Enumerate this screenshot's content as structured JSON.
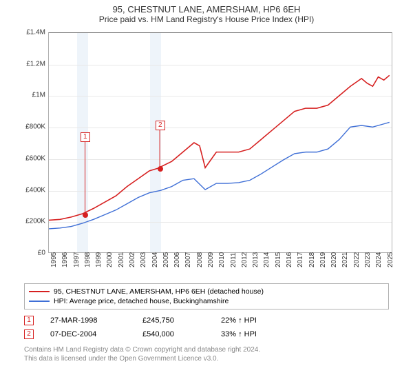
{
  "title": "95, CHESTNUT LANE, AMERSHAM, HP6 6EH",
  "subtitle": "Price paid vs. HM Land Registry's House Price Index (HPI)",
  "chart": {
    "type": "line",
    "background_color": "#ffffff",
    "grid_color": "#e8e8e8",
    "plot_border_color": "#b0b0b0",
    "x": {
      "min": 1995,
      "max": 2025.7,
      "ticks": [
        1995,
        1996,
        1997,
        1998,
        1999,
        2000,
        2001,
        2002,
        2003,
        2004,
        2005,
        2006,
        2007,
        2008,
        2009,
        2010,
        2011,
        2012,
        2013,
        2014,
        2015,
        2016,
        2017,
        2018,
        2019,
        2020,
        2021,
        2022,
        2023,
        2024,
        2025
      ],
      "label_fontsize": 10
    },
    "y": {
      "min": 0,
      "max": 1400000,
      "ticks": [
        0,
        200000,
        400000,
        600000,
        800000,
        1000000,
        1200000,
        1400000
      ],
      "tick_labels": [
        "£0",
        "£200K",
        "£400K",
        "£600K",
        "£800K",
        "£1M",
        "£1.2M",
        "£1.4M"
      ],
      "label_fontsize": 10
    },
    "shaded_bands": [
      {
        "start": 1997.5,
        "end": 1998.5,
        "color": "#eef4fa"
      },
      {
        "start": 2004.0,
        "end": 2005.0,
        "color": "#eef4fa"
      }
    ],
    "series": [
      {
        "name": "95, CHESTNUT LANE, AMERSHAM, HP6 6EH (detached house)",
        "color": "#d62020",
        "line_width": 1.6,
        "points": [
          [
            1995,
            205000
          ],
          [
            1996,
            210000
          ],
          [
            1997,
            225000
          ],
          [
            1998,
            245750
          ],
          [
            1999,
            280000
          ],
          [
            2000,
            320000
          ],
          [
            2001,
            360000
          ],
          [
            2002,
            420000
          ],
          [
            2003,
            470000
          ],
          [
            2004,
            520000
          ],
          [
            2004.93,
            540000
          ],
          [
            2005,
            545000
          ],
          [
            2006,
            580000
          ],
          [
            2007,
            640000
          ],
          [
            2008,
            700000
          ],
          [
            2008.5,
            680000
          ],
          [
            2009,
            540000
          ],
          [
            2009.5,
            590000
          ],
          [
            2010,
            640000
          ],
          [
            2011,
            640000
          ],
          [
            2012,
            640000
          ],
          [
            2013,
            660000
          ],
          [
            2014,
            720000
          ],
          [
            2015,
            780000
          ],
          [
            2016,
            840000
          ],
          [
            2017,
            900000
          ],
          [
            2018,
            920000
          ],
          [
            2019,
            920000
          ],
          [
            2020,
            940000
          ],
          [
            2021,
            1000000
          ],
          [
            2022,
            1060000
          ],
          [
            2023,
            1110000
          ],
          [
            2023.5,
            1080000
          ],
          [
            2024,
            1060000
          ],
          [
            2024.5,
            1120000
          ],
          [
            2025,
            1100000
          ],
          [
            2025.5,
            1130000
          ]
        ]
      },
      {
        "name": "HPI: Average price, detached house, Buckinghamshire",
        "color": "#3f6fd6",
        "line_width": 1.4,
        "points": [
          [
            1995,
            150000
          ],
          [
            1996,
            155000
          ],
          [
            1997,
            165000
          ],
          [
            1998,
            185000
          ],
          [
            1999,
            210000
          ],
          [
            2000,
            240000
          ],
          [
            2001,
            270000
          ],
          [
            2002,
            310000
          ],
          [
            2003,
            350000
          ],
          [
            2004,
            380000
          ],
          [
            2005,
            395000
          ],
          [
            2006,
            420000
          ],
          [
            2007,
            460000
          ],
          [
            2008,
            470000
          ],
          [
            2009,
            400000
          ],
          [
            2010,
            440000
          ],
          [
            2011,
            440000
          ],
          [
            2012,
            445000
          ],
          [
            2013,
            460000
          ],
          [
            2014,
            500000
          ],
          [
            2015,
            545000
          ],
          [
            2016,
            590000
          ],
          [
            2017,
            630000
          ],
          [
            2018,
            640000
          ],
          [
            2019,
            640000
          ],
          [
            2020,
            660000
          ],
          [
            2021,
            720000
          ],
          [
            2022,
            800000
          ],
          [
            2023,
            810000
          ],
          [
            2024,
            800000
          ],
          [
            2025,
            820000
          ],
          [
            2025.5,
            830000
          ]
        ]
      }
    ],
    "markers": [
      {
        "id": "1",
        "x": 1998.24,
        "y": 245750,
        "color": "#d62020",
        "box_y_offset": -120
      },
      {
        "id": "2",
        "x": 2004.93,
        "y": 540000,
        "color": "#d62020",
        "box_y_offset": -70
      }
    ]
  },
  "legend": {
    "items": [
      {
        "label": "95, CHESTNUT LANE, AMERSHAM, HP6 6EH (detached house)",
        "color": "#d62020"
      },
      {
        "label": "HPI: Average price, detached house, Buckinghamshire",
        "color": "#3f6fd6"
      }
    ]
  },
  "data_rows": [
    {
      "id": "1",
      "color": "#d62020",
      "date": "27-MAR-1998",
      "price": "£245,750",
      "delta": "22% ↑ HPI"
    },
    {
      "id": "2",
      "color": "#d62020",
      "date": "07-DEC-2004",
      "price": "£540,000",
      "delta": "33% ↑ HPI"
    }
  ],
  "footer_line1": "Contains HM Land Registry data © Crown copyright and database right 2024.",
  "footer_line2": "This data is licensed under the Open Government Licence v3.0."
}
